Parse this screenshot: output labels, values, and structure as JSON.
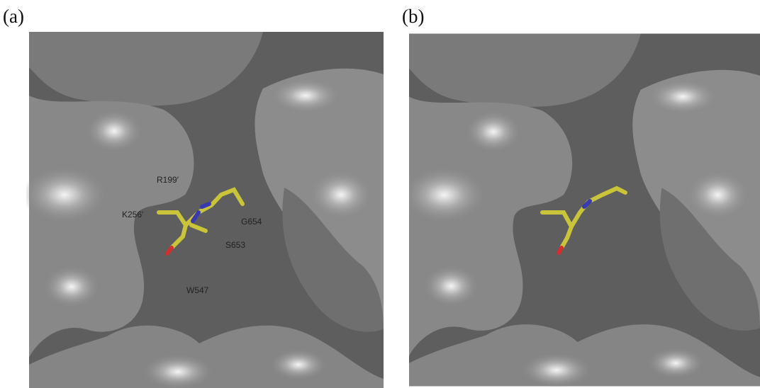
{
  "panels": [
    {
      "label": "(a)",
      "annotations": [
        "R199′",
        "K256′",
        "G654",
        "S653",
        "W547"
      ]
    },
    {
      "label": "(b)"
    }
  ]
}
